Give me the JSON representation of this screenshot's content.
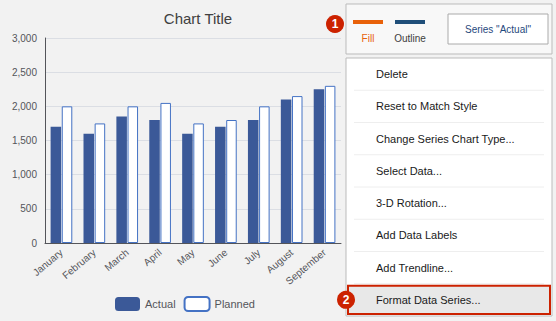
{
  "chart_data": {
    "type": "bar",
    "title": "Chart Title",
    "categories": [
      "January",
      "February",
      "March",
      "April",
      "May",
      "June",
      "July",
      "August",
      "September"
    ],
    "series": [
      {
        "name": "Actual",
        "color": "#3B5998",
        "values": [
          1700,
          1600,
          1850,
          1800,
          1600,
          1700,
          1800,
          2100,
          2250
        ]
      },
      {
        "name": "Planned",
        "color": "#4472C4",
        "values": [
          2000,
          1750,
          2000,
          2050,
          1750,
          1800,
          2000,
          2150,
          2300
        ]
      }
    ],
    "ylim": [
      0,
      3000
    ],
    "yticks": [
      0,
      500,
      1000,
      1500,
      2000,
      2500,
      3000
    ],
    "grid": true,
    "legend": "bottom",
    "annotations": [
      "Fill",
      "Outline",
      "Series \"Actual\"",
      "Delete",
      "Reset to Match Style",
      "Change Series Chart Type...",
      "Select Data...",
      "3-D Rotation...",
      "Add Data Labels",
      "Add Trendline...",
      "Format Data Series...",
      "1",
      "2"
    ]
  }
}
